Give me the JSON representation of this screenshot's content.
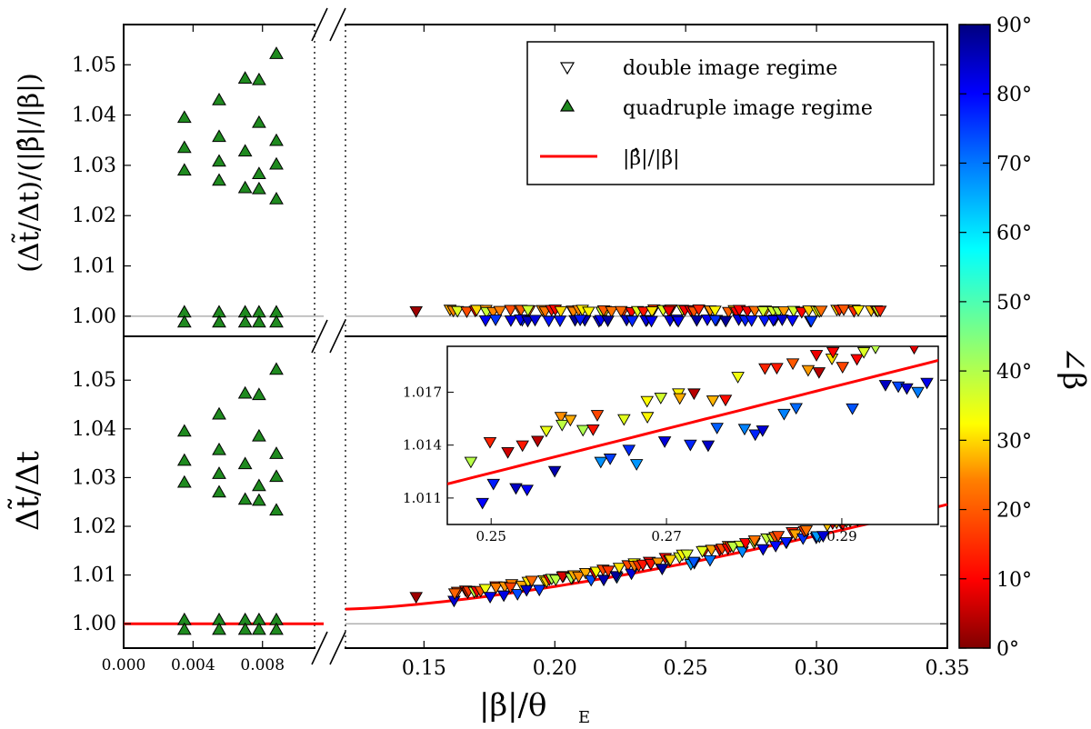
{
  "chart_data": [
    {
      "panel": "top",
      "type": "scatter",
      "ylabel": "(Δt̃/Δt)/(|β̂|/|β|)",
      "ylim": [
        0.996,
        1.058
      ],
      "yticks": [
        "1.00",
        "1.01",
        "1.02",
        "1.03",
        "1.04",
        "1.05"
      ],
      "xlim_left": [
        0.0,
        0.011
      ],
      "xlim_right": [
        0.12,
        0.35
      ],
      "reference_line": 1.0,
      "legend": {
        "position": "top-right",
        "entries": [
          "double image regime",
          "quadruple image regime",
          "|β̂|/|β|"
        ]
      },
      "quadruple_points": {
        "x": [
          0.0035,
          0.0055,
          0.007,
          0.0078,
          0.0088
        ],
        "y_sets": [
          [
            1.0395,
            1.0335,
            1.029,
            1.0008,
            0.9988
          ],
          [
            1.043,
            1.0357,
            1.0308,
            1.027,
            1.0008,
            0.9988
          ],
          [
            1.0473,
            1.0328,
            1.0255,
            1.0008,
            0.9988
          ],
          [
            1.047,
            1.0385,
            1.0283,
            1.0253,
            1.0008,
            0.9988
          ],
          [
            1.0522,
            1.0349,
            1.0302,
            1.0233,
            1.0008,
            0.9988
          ]
        ]
      },
      "double_points_note": "upper row y≈1.001 colored by angle (10°–40°), lower row y≈0.999 colored blue (80°–90°)"
    },
    {
      "panel": "bottom",
      "type": "scatter",
      "ylabel": "Δt̃/Δt",
      "ylim": [
        0.995,
        1.059
      ],
      "yticks": [
        "1.00",
        "1.01",
        "1.02",
        "1.03",
        "1.04",
        "1.05"
      ],
      "xlim_left": [
        0.0,
        0.011
      ],
      "xlim_right": [
        0.12,
        0.35
      ],
      "xticks_left": [
        "0.000",
        "0.004",
        "0.008"
      ],
      "xticks_right": [
        "0.15",
        "0.20",
        "0.25",
        "0.30",
        "0.35"
      ],
      "xlabel": "|β|/θE",
      "curve": {
        "name": "|β̂|/|β|",
        "x_start": 0.12,
        "x_end": 0.35,
        "y_start": 1.003,
        "y_end": 1.0245
      },
      "inset": {
        "xticks": [
          "0.25",
          "0.27",
          "0.29"
        ],
        "yticks": [
          "1.011",
          "1.014",
          "1.017"
        ],
        "xlim": [
          0.245,
          0.301
        ],
        "ylim": [
          1.0095,
          1.0196
        ]
      }
    }
  ],
  "colorbar": {
    "label": "∠β",
    "ticks": [
      "0°",
      "10°",
      "20°",
      "30°",
      "40°",
      "50°",
      "60°",
      "70°",
      "80°",
      "90°"
    ],
    "colormap": [
      "#800000",
      "#ff0000",
      "#ff8000",
      "#ffff00",
      "#80ff80",
      "#00ffff",
      "#0080ff",
      "#0000ff",
      "#000080"
    ]
  },
  "colors": {
    "quadruple": "#1f8a1f",
    "curve": "#ff0000",
    "refline": "#b0b0b0"
  },
  "text": {
    "xlabel_main": "|β|/θ",
    "xlabel_sub": "E",
    "ylabel_top": "(Δt̃/Δt)/(|β̂|/|β|)",
    "ylabel_bottom": "Δt̃/Δt",
    "cb_label": "∠β",
    "legend_double": "double image regime",
    "legend_quad": "quadruple image regime",
    "legend_line": "|β̂|/|β|"
  }
}
